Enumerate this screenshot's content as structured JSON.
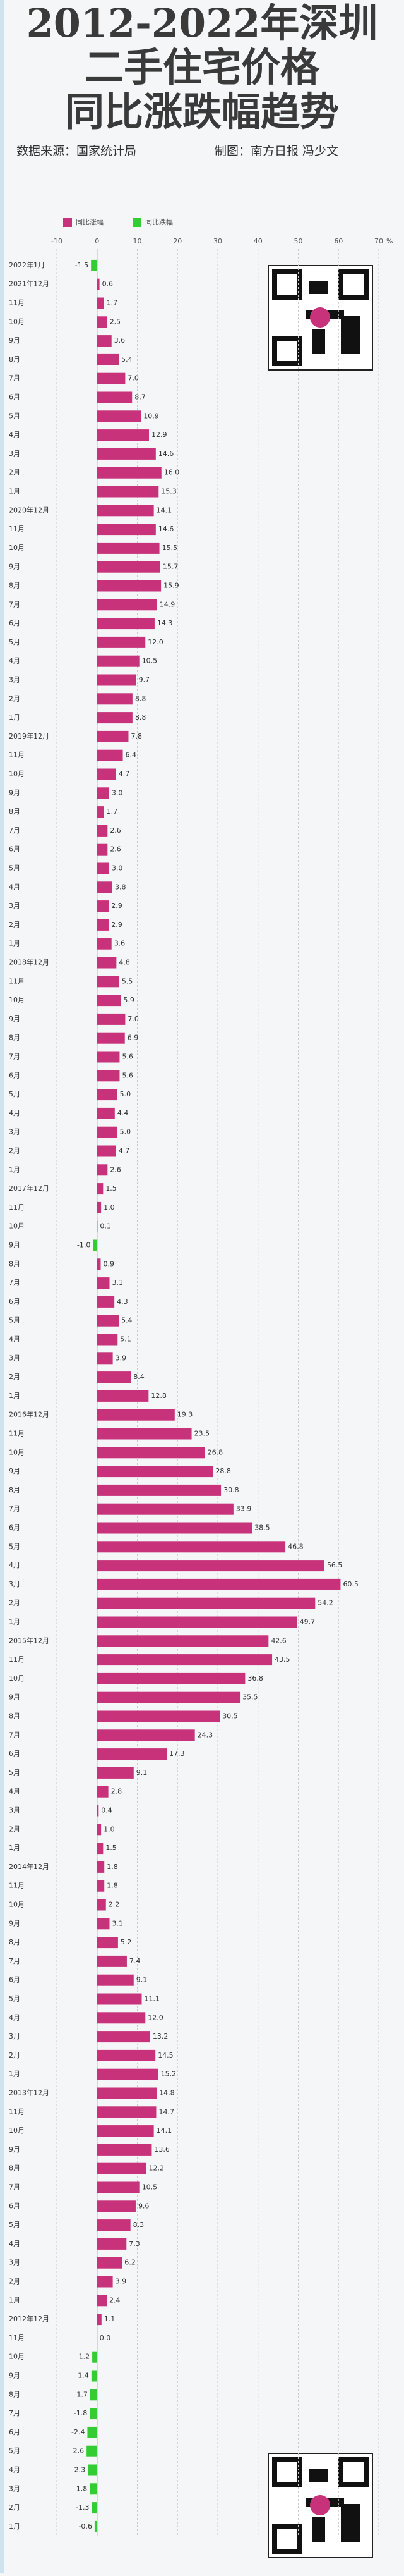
{
  "chart_data": {
    "type": "bar",
    "orientation": "horizontal",
    "title_lines": [
      "2012-2022年深圳",
      "二手住宅价格",
      "同比涨跌幅趋势"
    ],
    "source": "数据来源：国家统计局",
    "credit": "制图：南方日报 冯少文",
    "xlabel": "%",
    "legend": [
      {
        "name": "同比涨幅",
        "color": "#c8327a"
      },
      {
        "name": "同比跌幅",
        "color": "#33cc33"
      }
    ],
    "xlim": [
      -10,
      70
    ],
    "xticks": [
      -10,
      0,
      10,
      20,
      30,
      40,
      50,
      60,
      70
    ],
    "grid": true,
    "categories": [
      "2022年1月",
      "2021年12月",
      "11月",
      "10月",
      "9月",
      "8月",
      "7月",
      "6月",
      "5月",
      "4月",
      "3月",
      "2月",
      "1月",
      "2020年12月",
      "11月",
      "10月",
      "9月",
      "8月",
      "7月",
      "6月",
      "5月",
      "4月",
      "3月",
      "2月",
      "1月",
      "2019年12月",
      "11月",
      "10月",
      "9月",
      "8月",
      "7月",
      "6月",
      "5月",
      "4月",
      "3月",
      "2月",
      "1月",
      "2018年12月",
      "11月",
      "10月",
      "9月",
      "8月",
      "7月",
      "6月",
      "5月",
      "4月",
      "3月",
      "2月",
      "1月",
      "2017年12月",
      "11月",
      "10月",
      "9月",
      "8月",
      "7月",
      "6月",
      "5月",
      "4月",
      "3月",
      "2月",
      "1月",
      "2016年12月",
      "11月",
      "10月",
      "9月",
      "8月",
      "7月",
      "6月",
      "5月",
      "4月",
      "3月",
      "2月",
      "1月",
      "2015年12月",
      "11月",
      "10月",
      "9月",
      "8月",
      "7月",
      "6月",
      "5月",
      "4月",
      "3月",
      "2月",
      "1月",
      "2014年12月",
      "11月",
      "10月",
      "9月",
      "8月",
      "7月",
      "6月",
      "5月",
      "4月",
      "3月",
      "2月",
      "1月",
      "2013年12月",
      "11月",
      "10月",
      "9月",
      "8月",
      "7月",
      "6月",
      "5月",
      "4月",
      "3月",
      "2月",
      "1月",
      "2012年12月",
      "11月",
      "10月",
      "9月",
      "8月",
      "7月",
      "6月",
      "5月",
      "4月",
      "3月",
      "2月",
      "1月"
    ],
    "values": [
      -1.5,
      0.6,
      1.7,
      2.5,
      3.6,
      5.4,
      7,
      8.7,
      10.9,
      12.9,
      14.6,
      16,
      15.3,
      14.1,
      14.6,
      15.5,
      15.7,
      15.9,
      14.9,
      14.3,
      12,
      10.5,
      9.7,
      8.8,
      8.8,
      7.8,
      6.4,
      4.7,
      3,
      1.7,
      2.6,
      2.6,
      3,
      3.8,
      2.9,
      2.9,
      3.6,
      4.8,
      5.5,
      5.9,
      7,
      6.9,
      5.6,
      5.6,
      5,
      4.4,
      5,
      4.7,
      2.6,
      1.5,
      1,
      0.1,
      -1,
      0.9,
      3.1,
      4.3,
      5.4,
      5.1,
      3.9,
      8.4,
      12.8,
      19.3,
      23.5,
      26.8,
      28.8,
      30.8,
      33.9,
      38.5,
      46.8,
      56.5,
      60.5,
      54.2,
      49.7,
      42.6,
      43.5,
      36.8,
      35.5,
      30.5,
      24.3,
      17.3,
      9.1,
      2.8,
      0.4,
      1,
      1.5,
      1.8,
      1.8,
      2.2,
      3.1,
      5.2,
      7.4,
      9.1,
      11.1,
      12,
      13.2,
      14.5,
      15.2,
      14.8,
      14.7,
      14.1,
      13.6,
      12.2,
      10.5,
      9.6,
      8.3,
      7.3,
      6.2,
      3.9,
      2.4,
      1.1,
      0,
      -1.2,
      -1.4,
      -1.7,
      -1.8,
      -2.4,
      -2.6,
      -2.3,
      -1.8,
      -1.3,
      -0.6
    ],
    "value_labels": [
      "-1.5",
      "0.6",
      "1.7",
      "2.5",
      "3.6",
      "5.4",
      "7.0",
      "8.7",
      "10.9",
      "12.9",
      "14.6",
      "16.0",
      "15.3",
      "14.1",
      "14.6",
      "15.5",
      "15.7",
      "15.9",
      "14.9",
      "14.3",
      "12.0",
      "10.5",
      "9.7",
      "8.8",
      "8.8",
      "7.8",
      "6.4",
      "4.7",
      "3.0",
      "1.7",
      "2.6",
      "2.6",
      "3.0",
      "3.8",
      "2.9",
      "2.9",
      "3.6",
      "4.8",
      "5.5",
      "5.9",
      "7.0",
      "6.9",
      "5.6",
      "5.6",
      "5.0",
      "4.4",
      "5.0",
      "4.7",
      "2.6",
      "1.5",
      "1.0",
      "0.1",
      "-1.0",
      "0.9",
      "3.1",
      "4.3",
      "5.4",
      "5.1",
      "3.9",
      "8.4",
      "12.8",
      "19.3",
      "23.5",
      "26.8",
      "28.8",
      "30.8",
      "33.9",
      "38.5",
      "46.8",
      "56.5",
      "60.5",
      "54.2",
      "49.7",
      "42.6",
      "43.5",
      "36.8",
      "35.5",
      "30.5",
      "24.3",
      "17.3",
      "9.1",
      "2.8",
      "0.4",
      "1.0",
      "1.5",
      "1.8",
      "1.8",
      "2.2",
      "3.1",
      "5.2",
      "7.4",
      "9.1",
      "11.1",
      "12.0",
      "13.2",
      "14.5",
      "15.2",
      "14.8",
      "14.7",
      "14.1",
      "13.6",
      "12.2",
      "10.5",
      "9.6",
      "8.3",
      "7.3",
      "6.2",
      "3.9",
      "2.4",
      "1.1",
      "0.0",
      "-1.2",
      "-1.4",
      "-1.7",
      "-1.8",
      "-2.4",
      "-2.6",
      "-2.3",
      "-1.8",
      "-1.3",
      "-0.6"
    ]
  }
}
